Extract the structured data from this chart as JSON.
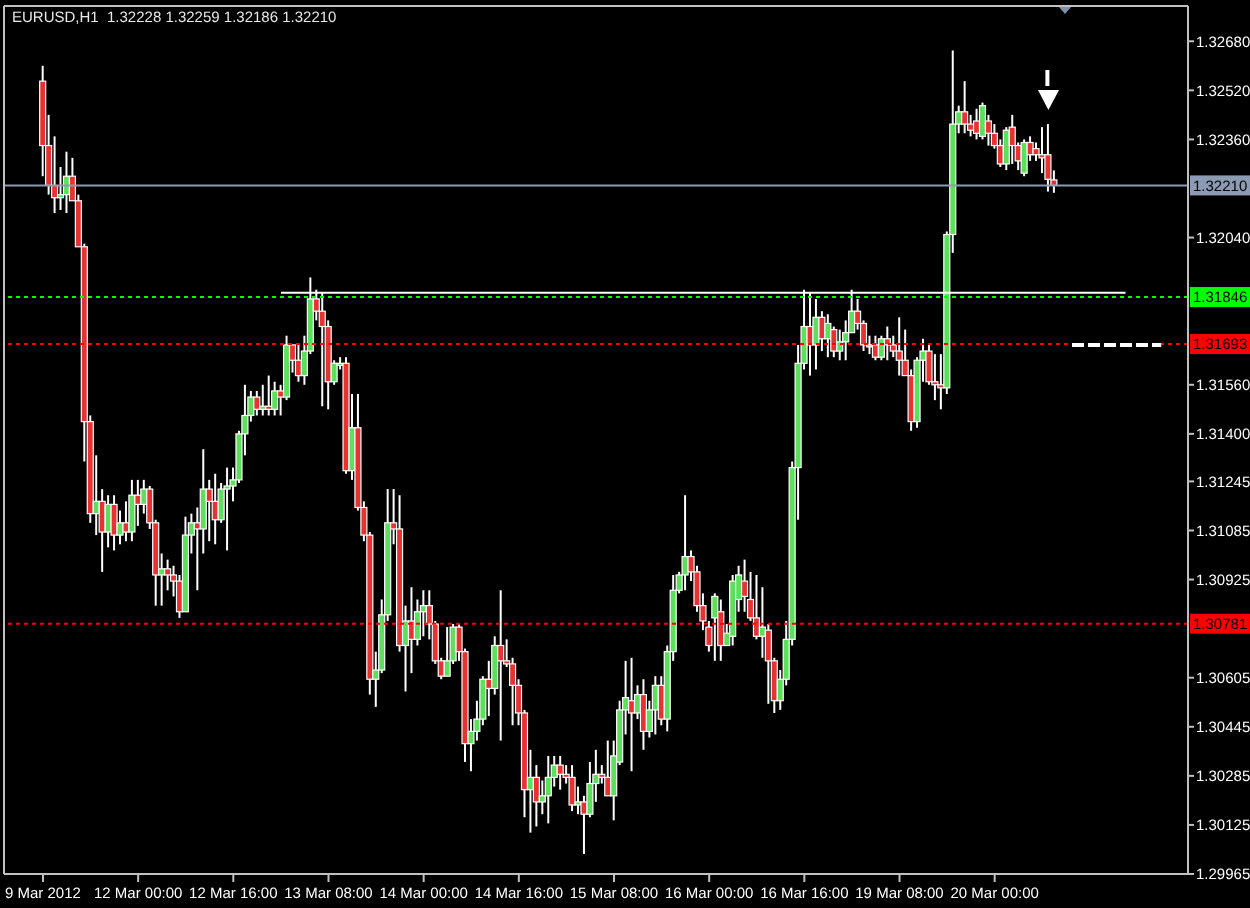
{
  "chart_data": {
    "type": "candlestick",
    "title": "EURUSD,H1  1.32228 1.32259 1.32186 1.32210",
    "categories": [
      "9 Mar 2012",
      null,
      null,
      null,
      null,
      null,
      null,
      null,
      null,
      null,
      null,
      null,
      null,
      null,
      null,
      null,
      "12 Mar 00:00",
      null,
      null,
      null,
      null,
      null,
      null,
      null,
      null,
      null,
      null,
      null,
      null,
      null,
      null,
      null,
      "12 Mar 16:00",
      null,
      null,
      null,
      null,
      null,
      null,
      null,
      null,
      null,
      null,
      null,
      null,
      null,
      null,
      null,
      "13 Mar 08:00",
      null,
      null,
      null,
      null,
      null,
      null,
      null,
      null,
      null,
      null,
      null,
      null,
      null,
      null,
      null,
      "14 Mar 00:00",
      null,
      null,
      null,
      null,
      null,
      null,
      null,
      null,
      null,
      null,
      null,
      null,
      null,
      null,
      null,
      "14 Mar 16:00",
      null,
      null,
      null,
      null,
      null,
      null,
      null,
      null,
      null,
      null,
      null,
      null,
      null,
      null,
      null,
      "15 Mar 08:00",
      null,
      null,
      null,
      null,
      null,
      null,
      null,
      null,
      null,
      null,
      null,
      null,
      null,
      null,
      null,
      "16 Mar 00:00",
      null,
      null,
      null,
      null,
      null,
      null,
      null,
      null,
      null,
      null,
      null,
      null,
      null,
      null,
      null,
      "16 Mar 16:00",
      null,
      null,
      null,
      null,
      null,
      null,
      null,
      null,
      null,
      null,
      null,
      null,
      null,
      null,
      null,
      "19 Mar 08:00",
      null,
      null,
      null,
      null,
      null,
      null,
      null,
      null,
      null,
      null,
      null,
      null,
      null,
      null,
      null,
      "20 Mar 00:00",
      null,
      null,
      null,
      null,
      null,
      null,
      null,
      null,
      null,
      null,
      null,
      null,
      null,
      null,
      null,
      null,
      null,
      null,
      null,
      null,
      null,
      null,
      null,
      null,
      null,
      null,
      null,
      null,
      null,
      null,
      null,
      null
    ],
    "ohlc": [
      [
        1.3255,
        1.326,
        1.3224,
        1.3234
      ],
      [
        1.3234,
        1.3244,
        1.3218,
        1.3221
      ],
      [
        1.3221,
        1.3237,
        1.3212,
        1.3217
      ],
      [
        1.3217,
        1.3227,
        1.3213,
        1.3218
      ],
      [
        1.3218,
        1.3232,
        1.3212,
        1.3224
      ],
      [
        1.3224,
        1.323,
        1.3216,
        1.3216
      ],
      [
        1.3216,
        1.3218,
        1.3201,
        1.3201
      ],
      [
        1.3201,
        1.3202,
        1.3131,
        1.3144
      ],
      [
        1.3144,
        1.3146,
        1.3111,
        1.3114
      ],
      [
        1.3114,
        1.3133,
        1.3107,
        1.3118
      ],
      [
        1.3118,
        1.3122,
        1.3095,
        1.3108
      ],
      [
        1.3108,
        1.312,
        1.3103,
        1.3117
      ],
      [
        1.3117,
        1.312,
        1.3102,
        1.3107
      ],
      [
        1.3107,
        1.3115,
        1.3104,
        1.3111
      ],
      [
        1.3111,
        1.3118,
        1.3105,
        1.3108
      ],
      [
        1.3108,
        1.3125,
        1.3105,
        1.312
      ],
      [
        1.312,
        1.3125,
        1.311,
        1.3117
      ],
      [
        1.3117,
        1.3125,
        1.3114,
        1.3122
      ],
      [
        1.3122,
        1.3123,
        1.3109,
        1.3111
      ],
      [
        1.3111,
        1.3112,
        1.3084,
        1.3094
      ],
      [
        1.3094,
        1.3101,
        1.3084,
        1.3096
      ],
      [
        1.3096,
        1.3099,
        1.3089,
        1.3094
      ],
      [
        1.3094,
        1.3097,
        1.3087,
        1.3092
      ],
      [
        1.3092,
        1.3094,
        1.308,
        1.3082
      ],
      [
        1.3082,
        1.3113,
        1.3082,
        1.3107
      ],
      [
        1.3107,
        1.3114,
        1.3101,
        1.3111
      ],
      [
        1.3111,
        1.3116,
        1.3089,
        1.3109
      ],
      [
        1.3109,
        1.3135,
        1.3101,
        1.3122
      ],
      [
        1.3122,
        1.3125,
        1.3105,
        1.3118
      ],
      [
        1.3118,
        1.3127,
        1.3104,
        1.3112
      ],
      [
        1.3112,
        1.3124,
        1.3111,
        1.3122
      ],
      [
        1.3122,
        1.3129,
        1.3102,
        1.3123
      ],
      [
        1.3123,
        1.3129,
        1.3118,
        1.3125
      ],
      [
        1.3125,
        1.3141,
        1.3124,
        1.314
      ],
      [
        1.314,
        1.3156,
        1.3133,
        1.3146
      ],
      [
        1.3146,
        1.3154,
        1.3144,
        1.3152
      ],
      [
        1.3152,
        1.3154,
        1.3146,
        1.3148
      ],
      [
        1.3148,
        1.3156,
        1.3146,
        1.3149
      ],
      [
        1.3149,
        1.3159,
        1.3146,
        1.3148
      ],
      [
        1.3148,
        1.3157,
        1.3146,
        1.3154
      ],
      [
        1.3154,
        1.3156,
        1.3146,
        1.3152
      ],
      [
        1.3152,
        1.3172,
        1.3151,
        1.3169
      ],
      [
        1.3169,
        1.3169,
        1.316,
        1.3164
      ],
      [
        1.3164,
        1.3169,
        1.3157,
        1.3159
      ],
      [
        1.3159,
        1.3172,
        1.3156,
        1.3167
      ],
      [
        1.3167,
        1.3191,
        1.3166,
        1.3184
      ],
      [
        1.3184,
        1.3187,
        1.3177,
        1.318
      ],
      [
        1.318,
        1.3186,
        1.3149,
        1.3175
      ],
      [
        1.3175,
        1.3177,
        1.3148,
        1.3157
      ],
      [
        1.3157,
        1.3164,
        1.3156,
        1.3163
      ],
      [
        1.3163,
        1.3165,
        1.3161,
        1.3163
      ],
      [
        1.3163,
        1.3165,
        1.3127,
        1.3128
      ],
      [
        1.3128,
        1.3153,
        1.3125,
        1.3142
      ],
      [
        1.3142,
        1.3153,
        1.3115,
        1.3116
      ],
      [
        1.3116,
        1.3118,
        1.3105,
        1.3107
      ],
      [
        1.3107,
        1.3108,
        1.3055,
        1.306
      ],
      [
        1.306,
        1.3069,
        1.3051,
        1.3063
      ],
      [
        1.3063,
        1.3086,
        1.3062,
        1.3081
      ],
      [
        1.3081,
        1.3122,
        1.3079,
        1.3111
      ],
      [
        1.3111,
        1.3122,
        1.3104,
        1.3109
      ],
      [
        1.3109,
        1.312,
        1.3069,
        1.3071
      ],
      [
        1.3071,
        1.3084,
        1.3056,
        1.3079
      ],
      [
        1.3079,
        1.309,
        1.3062,
        1.3073
      ],
      [
        1.3073,
        1.3086,
        1.3071,
        1.3082
      ],
      [
        1.3082,
        1.3089,
        1.3074,
        1.3084
      ],
      [
        1.3084,
        1.3089,
        1.3073,
        1.3078
      ],
      [
        1.3078,
        1.3079,
        1.3065,
        1.3066
      ],
      [
        1.3066,
        1.3067,
        1.306,
        1.3061
      ],
      [
        1.3061,
        1.3077,
        1.3061,
        1.3066
      ],
      [
        1.3066,
        1.3078,
        1.3065,
        1.3077
      ],
      [
        1.3077,
        1.3078,
        1.3066,
        1.3069
      ],
      [
        1.3069,
        1.307,
        1.3033,
        1.3039
      ],
      [
        1.3039,
        1.3047,
        1.303,
        1.3043
      ],
      [
        1.3043,
        1.3053,
        1.304,
        1.3047
      ],
      [
        1.3047,
        1.3061,
        1.3045,
        1.306
      ],
      [
        1.306,
        1.3066,
        1.3048,
        1.3057
      ],
      [
        1.3057,
        1.3074,
        1.3055,
        1.3071
      ],
      [
        1.3071,
        1.3089,
        1.304,
        1.3066
      ],
      [
        1.3066,
        1.3073,
        1.3064,
        1.3065
      ],
      [
        1.3065,
        1.3067,
        1.3045,
        1.3058
      ],
      [
        1.3058,
        1.306,
        1.3045,
        1.3049
      ],
      [
        1.3049,
        1.305,
        1.3015,
        1.3024
      ],
      [
        1.3024,
        1.3037,
        1.301,
        1.3028
      ],
      [
        1.3028,
        1.3032,
        1.3012,
        1.302
      ],
      [
        1.302,
        1.3027,
        1.3016,
        1.3022
      ],
      [
        1.3022,
        1.3035,
        1.3013,
        1.3028
      ],
      [
        1.3028,
        1.3035,
        1.3025,
        1.3032
      ],
      [
        1.3032,
        1.3035,
        1.3024,
        1.3029
      ],
      [
        1.3029,
        1.3032,
        1.3026,
        1.3028
      ],
      [
        1.3028,
        1.3032,
        1.3017,
        1.3019
      ],
      [
        1.3019,
        1.3025,
        1.3016,
        1.302
      ],
      [
        1.302,
        1.3022,
        1.3003,
        1.3016
      ],
      [
        1.3016,
        1.3033,
        1.3015,
        1.3026
      ],
      [
        1.3026,
        1.3037,
        1.302,
        1.3029
      ],
      [
        1.3029,
        1.3032,
        1.3026,
        1.3028
      ],
      [
        1.3028,
        1.304,
        1.3022,
        1.3022
      ],
      [
        1.3022,
        1.304,
        1.3014,
        1.3035
      ],
      [
        1.3033,
        1.3053,
        1.3032,
        1.305
      ],
      [
        1.305,
        1.3066,
        1.3042,
        1.3054
      ],
      [
        1.3053,
        1.3067,
        1.303,
        1.3049
      ],
      [
        1.3049,
        1.3058,
        1.3047,
        1.3055
      ],
      [
        1.3055,
        1.306,
        1.3037,
        1.3043
      ],
      [
        1.3043,
        1.3053,
        1.3041,
        1.305
      ],
      [
        1.305,
        1.3061,
        1.3042,
        1.3058
      ],
      [
        1.3058,
        1.3061,
        1.3045,
        1.3047
      ],
      [
        1.3047,
        1.3071,
        1.3043,
        1.3069
      ],
      [
        1.3069,
        1.3094,
        1.3066,
        1.3089
      ],
      [
        1.3089,
        1.3095,
        1.3088,
        1.3094
      ],
      [
        1.3094,
        1.312,
        1.3089,
        1.31
      ],
      [
        1.31,
        1.3102,
        1.3092,
        1.3095
      ],
      [
        1.3095,
        1.3097,
        1.3082,
        1.3084
      ],
      [
        1.3084,
        1.3088,
        1.3076,
        1.3079
      ],
      [
        1.3077,
        1.3079,
        1.3069,
        1.3071
      ],
      [
        1.308,
        1.3088,
        1.3066,
        1.3087
      ],
      [
        1.3082,
        1.3086,
        1.3066,
        1.3071
      ],
      [
        1.3071,
        1.3078,
        1.3071,
        1.3075
      ],
      [
        1.3074,
        1.3094,
        1.3071,
        1.3092
      ],
      [
        1.3086,
        1.3097,
        1.3082,
        1.3094
      ],
      [
        1.3092,
        1.3099,
        1.3082,
        1.3087
      ],
      [
        1.3086,
        1.3095,
        1.3079,
        1.308
      ],
      [
        1.308,
        1.3094,
        1.3073,
        1.3074
      ],
      [
        1.3074,
        1.309,
        1.3067,
        1.3077
      ],
      [
        1.3076,
        1.3078,
        1.3052,
        1.3066
      ],
      [
        1.3066,
        1.3067,
        1.3049,
        1.3053
      ],
      [
        1.3053,
        1.3063,
        1.305,
        1.306
      ],
      [
        1.306,
        1.3079,
        1.3058,
        1.3073
      ],
      [
        1.3073,
        1.3131,
        1.3071,
        1.3129
      ],
      [
        1.3129,
        1.3169,
        1.3112,
        1.3163
      ],
      [
        1.3163,
        1.3187,
        1.3161,
        1.3175
      ],
      [
        1.3175,
        1.3186,
        1.3159,
        1.3169
      ],
      [
        1.3169,
        1.3184,
        1.3161,
        1.3178
      ],
      [
        1.3178,
        1.318,
        1.3167,
        1.3171
      ],
      [
        1.3171,
        1.3179,
        1.3165,
        1.3176
      ],
      [
        1.3174,
        1.3175,
        1.3165,
        1.3167
      ],
      [
        1.3167,
        1.3174,
        1.3164,
        1.317
      ],
      [
        1.317,
        1.3177,
        1.3164,
        1.3173
      ],
      [
        1.3173,
        1.3187,
        1.3173,
        1.318
      ],
      [
        1.318,
        1.3184,
        1.3174,
        1.3176
      ],
      [
        1.3176,
        1.3177,
        1.3167,
        1.3169
      ],
      [
        1.3169,
        1.3172,
        1.3166,
        1.3169
      ],
      [
        1.3169,
        1.3172,
        1.3164,
        1.3165
      ],
      [
        1.3165,
        1.3172,
        1.3164,
        1.3171
      ],
      [
        1.3171,
        1.3175,
        1.3164,
        1.3169
      ],
      [
        1.3169,
        1.3172,
        1.3165,
        1.3167
      ],
      [
        1.3167,
        1.3178,
        1.3159,
        1.3164
      ],
      [
        1.3164,
        1.3174,
        1.3159,
        1.3159
      ],
      [
        1.3159,
        1.3161,
        1.3141,
        1.3144
      ],
      [
        1.3144,
        1.3165,
        1.3142,
        1.3164
      ],
      [
        1.3164,
        1.3171,
        1.3157,
        1.3167
      ],
      [
        1.3167,
        1.3169,
        1.3156,
        1.3157
      ],
      [
        1.3157,
        1.3166,
        1.3151,
        1.3156
      ],
      [
        1.3156,
        1.3166,
        1.3148,
        1.3155
      ],
      [
        1.3155,
        1.3206,
        1.3153,
        1.3205
      ],
      [
        1.3205,
        1.3265,
        1.3199,
        1.3241
      ],
      [
        1.3241,
        1.3247,
        1.3238,
        1.3245
      ],
      [
        1.3245,
        1.3255,
        1.3238,
        1.3241
      ],
      [
        1.3241,
        1.3244,
        1.3237,
        1.3239
      ],
      [
        1.3242,
        1.3246,
        1.3236,
        1.3238
      ],
      [
        1.3237,
        1.3248,
        1.3236,
        1.3247
      ],
      [
        1.3242,
        1.3244,
        1.3234,
        1.3238
      ],
      [
        1.3238,
        1.3241,
        1.3233,
        1.3234
      ],
      [
        1.3234,
        1.3236,
        1.3227,
        1.3228
      ],
      [
        1.3228,
        1.324,
        1.3226,
        1.3239
      ],
      [
        1.324,
        1.3244,
        1.3228,
        1.3234
      ],
      [
        1.3234,
        1.3235,
        1.3226,
        1.3229
      ],
      [
        1.3225,
        1.3236,
        1.3224,
        1.3235
      ],
      [
        1.3235,
        1.3237,
        1.3229,
        1.3231
      ],
      [
        1.3233,
        1.3235,
        1.3229,
        1.3231
      ],
      [
        1.3231,
        1.324,
        1.3225,
        1.323
      ],
      [
        1.3231,
        1.3241,
        1.3219,
        1.3223
      ],
      [
        1.32228,
        1.32259,
        1.32186,
        1.3221
      ],
      null,
      null,
      null,
      null,
      null,
      null,
      null,
      null,
      null,
      null,
      null,
      null,
      null,
      null,
      null,
      null,
      null,
      null,
      null,
      null,
      null,
      null
    ],
    "ylim": [
      1.29965,
      1.32795
    ],
    "yticks": [
      {
        "value": 1.3268,
        "label": "1.32680"
      },
      {
        "value": 1.3252,
        "label": "1.32520"
      },
      {
        "value": 1.3236,
        "label": "1.32360"
      },
      {
        "value": 1.3204,
        "label": "1.32040"
      },
      {
        "value": 1.3156,
        "label": "1.31560"
      },
      {
        "value": 1.314,
        "label": "1.31400"
      },
      {
        "value": 1.31245,
        "label": "1.31245"
      },
      {
        "value": 1.31085,
        "label": "1.31085"
      },
      {
        "value": 1.30925,
        "label": "1.30925"
      },
      {
        "value": 1.30605,
        "label": "1.30605"
      },
      {
        "value": 1.30445,
        "label": "1.30445"
      },
      {
        "value": 1.30285,
        "label": "1.30285"
      },
      {
        "value": 1.30125,
        "label": "1.30125"
      },
      {
        "value": 1.29965,
        "label": "1.29965"
      }
    ],
    "ref_lines": [
      {
        "axis": "y",
        "value": 1.3221,
        "label": "1.32210",
        "color": "#8c9ab4",
        "line_style": "solid"
      },
      {
        "axis": "y",
        "value": 1.31846,
        "label": "1.31846",
        "color": "#00ff00",
        "line_style": "dotted"
      },
      {
        "axis": "y",
        "value": 1.31693,
        "label": "1.31693",
        "color": "#ff0000",
        "line_style": "dotted"
      },
      {
        "axis": "y",
        "value": 1.30781,
        "label": "1.30781",
        "color": "#ff0000",
        "line_style": "dotted"
      }
    ],
    "series": [
      {
        "type": "line",
        "color": "#ffffff",
        "line_style": "solid",
        "values": [
          null,
          null,
          null,
          null,
          null,
          null,
          null,
          null,
          null,
          null,
          null,
          null,
          null,
          null,
          null,
          null,
          null,
          null,
          null,
          null,
          null,
          null,
          null,
          null,
          null,
          null,
          null,
          null,
          null,
          null,
          null,
          null,
          null,
          null,
          null,
          null,
          null,
          null,
          null,
          null,
          1.3186,
          1.3186,
          1.3186,
          1.3186,
          1.3186,
          1.3186,
          1.3186,
          1.3186,
          1.3186,
          1.3186,
          1.3186,
          1.3186,
          1.3186,
          1.3186,
          1.3186,
          1.3186,
          1.3186,
          1.3186,
          1.3186,
          1.3186,
          1.3186,
          1.3186,
          1.3186,
          1.3186,
          1.3186,
          1.3186,
          1.3186,
          1.3186,
          1.3186,
          1.3186,
          1.3186,
          1.3186,
          1.3186,
          1.3186,
          1.3186,
          1.3186,
          1.3186,
          1.3186,
          1.3186,
          1.3186,
          1.3186,
          1.3186,
          1.3186,
          1.3186,
          1.3186,
          1.3186,
          1.3186,
          1.3186,
          1.3186,
          1.3186,
          1.3186,
          1.3186,
          1.3186,
          1.3186,
          1.3186,
          1.3186,
          1.3186,
          1.3186,
          1.3186,
          1.3186,
          1.3186,
          1.3186,
          1.3186,
          1.3186,
          1.3186,
          1.3186,
          1.3186,
          1.3186,
          1.3186,
          1.3186,
          1.3186,
          1.3186,
          1.3186,
          1.3186,
          1.3186,
          1.3186,
          1.3186,
          1.3186,
          1.3186,
          1.3186,
          1.3186,
          1.3186,
          1.3186,
          1.3186,
          1.3186,
          1.3186,
          1.3186,
          1.3186,
          1.3186,
          1.3186,
          1.3186,
          1.3186,
          1.3186,
          1.3186,
          1.3186,
          1.3186,
          1.3186,
          1.3186,
          1.3186,
          1.3186,
          1.3186,
          1.3186,
          1.3186,
          1.3186,
          1.3186,
          1.3186,
          1.3186,
          1.3186,
          1.3186,
          1.3186,
          1.3186,
          1.3186,
          1.3186,
          1.3186,
          1.3186,
          1.3186,
          1.3186,
          1.3186,
          1.3186,
          1.3186,
          1.3186,
          1.3186,
          1.3186,
          1.3186,
          1.3186,
          1.3186,
          1.3186,
          1.3186,
          1.3186,
          1.3186,
          1.3186,
          1.3186,
          1.3186,
          1.3186,
          1.3186,
          1.3186,
          1.3186,
          1.3186,
          1.3186,
          1.3186,
          1.3186,
          1.3186,
          1.3186,
          null,
          null,
          null,
          null,
          null,
          null,
          null,
          null,
          null,
          null
        ]
      },
      {
        "type": "line",
        "color": "#ffffff",
        "line_style": "dashed",
        "values": [
          null,
          null,
          null,
          null,
          null,
          null,
          null,
          null,
          null,
          null,
          null,
          null,
          null,
          null,
          null,
          null,
          null,
          null,
          null,
          null,
          null,
          null,
          null,
          null,
          null,
          null,
          null,
          null,
          null,
          null,
          null,
          null,
          null,
          null,
          null,
          null,
          null,
          null,
          null,
          null,
          null,
          null,
          null,
          null,
          null,
          null,
          null,
          null,
          null,
          null,
          null,
          null,
          null,
          null,
          null,
          null,
          null,
          null,
          null,
          null,
          null,
          null,
          null,
          null,
          null,
          null,
          null,
          null,
          null,
          null,
          null,
          null,
          null,
          null,
          null,
          null,
          null,
          null,
          null,
          null,
          null,
          null,
          null,
          null,
          null,
          null,
          null,
          null,
          null,
          null,
          null,
          null,
          null,
          null,
          null,
          null,
          null,
          null,
          null,
          null,
          null,
          null,
          null,
          null,
          null,
          null,
          null,
          null,
          null,
          null,
          null,
          null,
          null,
          null,
          null,
          null,
          null,
          null,
          null,
          null,
          null,
          null,
          null,
          null,
          null,
          null,
          null,
          null,
          null,
          null,
          null,
          null,
          null,
          null,
          null,
          null,
          null,
          null,
          null,
          null,
          null,
          null,
          null,
          null,
          null,
          null,
          null,
          null,
          null,
          null,
          null,
          null,
          null,
          null,
          null,
          null,
          null,
          null,
          null,
          null,
          null,
          null,
          null,
          null,
          null,
          null,
          null,
          null,
          null,
          null,
          null,
          null,
          null,
          1.3169,
          1.3169,
          1.3169,
          1.3169,
          1.3169,
          1.3169,
          1.3169,
          1.3169,
          1.3169,
          1.3169,
          1.3169,
          1.3169,
          1.3169,
          1.3169,
          1.3169,
          1.3169,
          null,
          null,
          null,
          null
        ]
      }
    ]
  }
}
